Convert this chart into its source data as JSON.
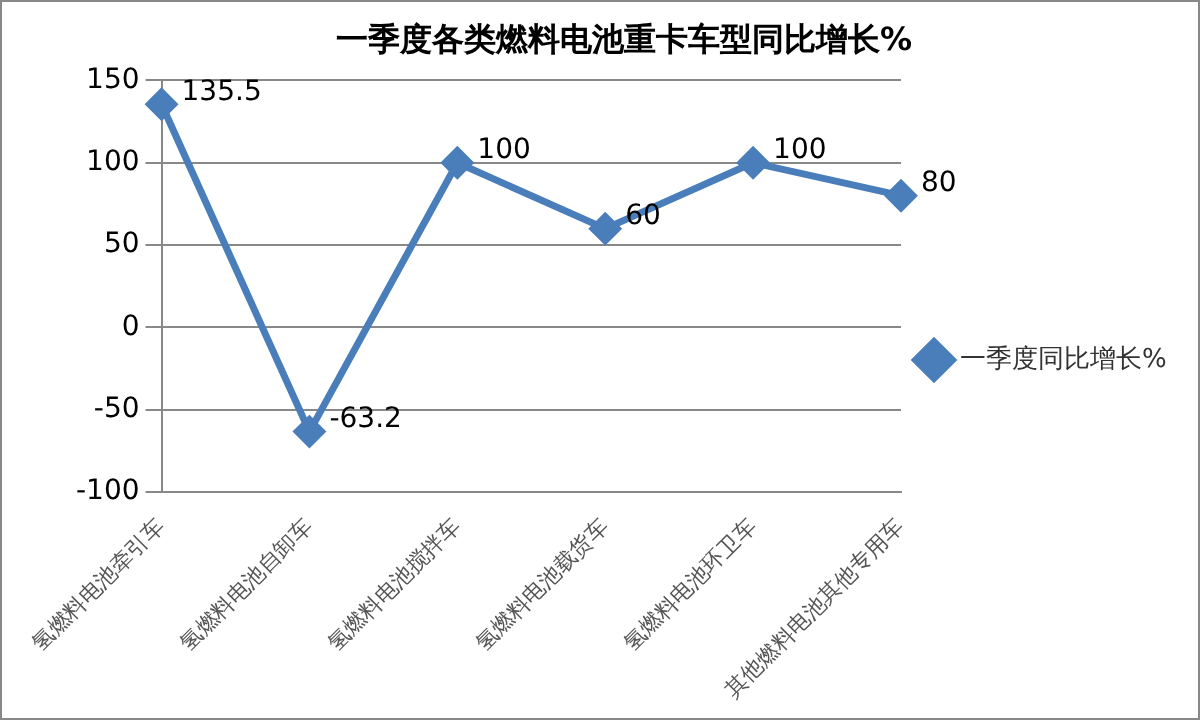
{
  "chart_data": {
    "type": "line",
    "title": "一季度各类燃料电池重卡车型同比增长%",
    "categories": [
      "氢燃料电池牵引车",
      "氢燃料电池自卸车",
      "氢燃料电池搅拌车",
      "氢燃料电池载货车",
      "氢燃料电池环卫车",
      "其他燃料电池其他专用车"
    ],
    "series": [
      {
        "name": "一季度同比增长%",
        "color": "#4a7ebb",
        "values": [
          135.5,
          -63.2,
          100,
          60,
          100,
          80
        ]
      }
    ],
    "ylim": [
      -100,
      150
    ],
    "yticks": [
      -100,
      -50,
      0,
      50,
      100,
      150
    ],
    "grid": "y",
    "legend": "right",
    "marker": "diamond",
    "line_style": "solid",
    "data_labels": true
  }
}
